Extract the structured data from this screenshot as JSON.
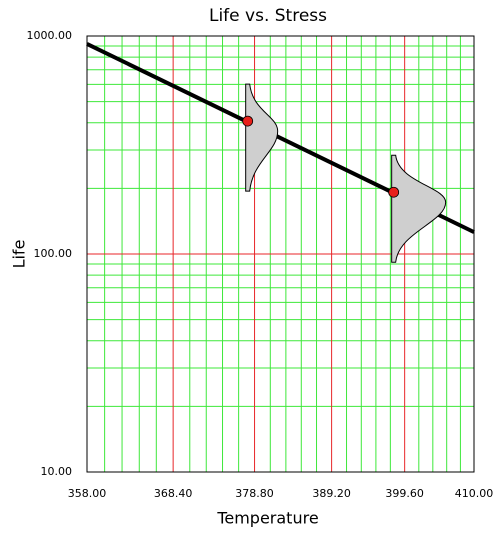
{
  "chart_data": {
    "type": "line",
    "title": "Life vs. Stress",
    "x_label": "Temperature",
    "y_label": "Life",
    "xscale": "reciprocal",
    "yscale": "log",
    "xlim": [
      358,
      410
    ],
    "ylim": [
      10,
      1000
    ],
    "xticks": [
      {
        "value": 358,
        "label": "358.00"
      },
      {
        "value": 368.4,
        "label": "368.40"
      },
      {
        "value": 378.8,
        "label": "378.80"
      },
      {
        "value": 389.2,
        "label": "389.20"
      },
      {
        "value": 399.6,
        "label": "399.60"
      },
      {
        "value": 410,
        "label": "410.00"
      }
    ],
    "yticks": [
      {
        "value": 10,
        "label": "10.00"
      },
      {
        "value": 100,
        "label": "100.00"
      },
      {
        "value": 1000,
        "label": "1000.00"
      }
    ],
    "grid": true,
    "major_grid_color": "#e8262a",
    "minor_grid_color": "#3ee83a",
    "series": [
      {
        "style": "line",
        "color": "#000000",
        "x": [
          358,
          410
        ],
        "values": [
          920,
          126
        ]
      },
      {
        "style": "marker",
        "color": "#e8201a",
        "x": [
          377.9,
          398.0
        ],
        "values": [
          407,
          192
        ]
      }
    ]
  }
}
